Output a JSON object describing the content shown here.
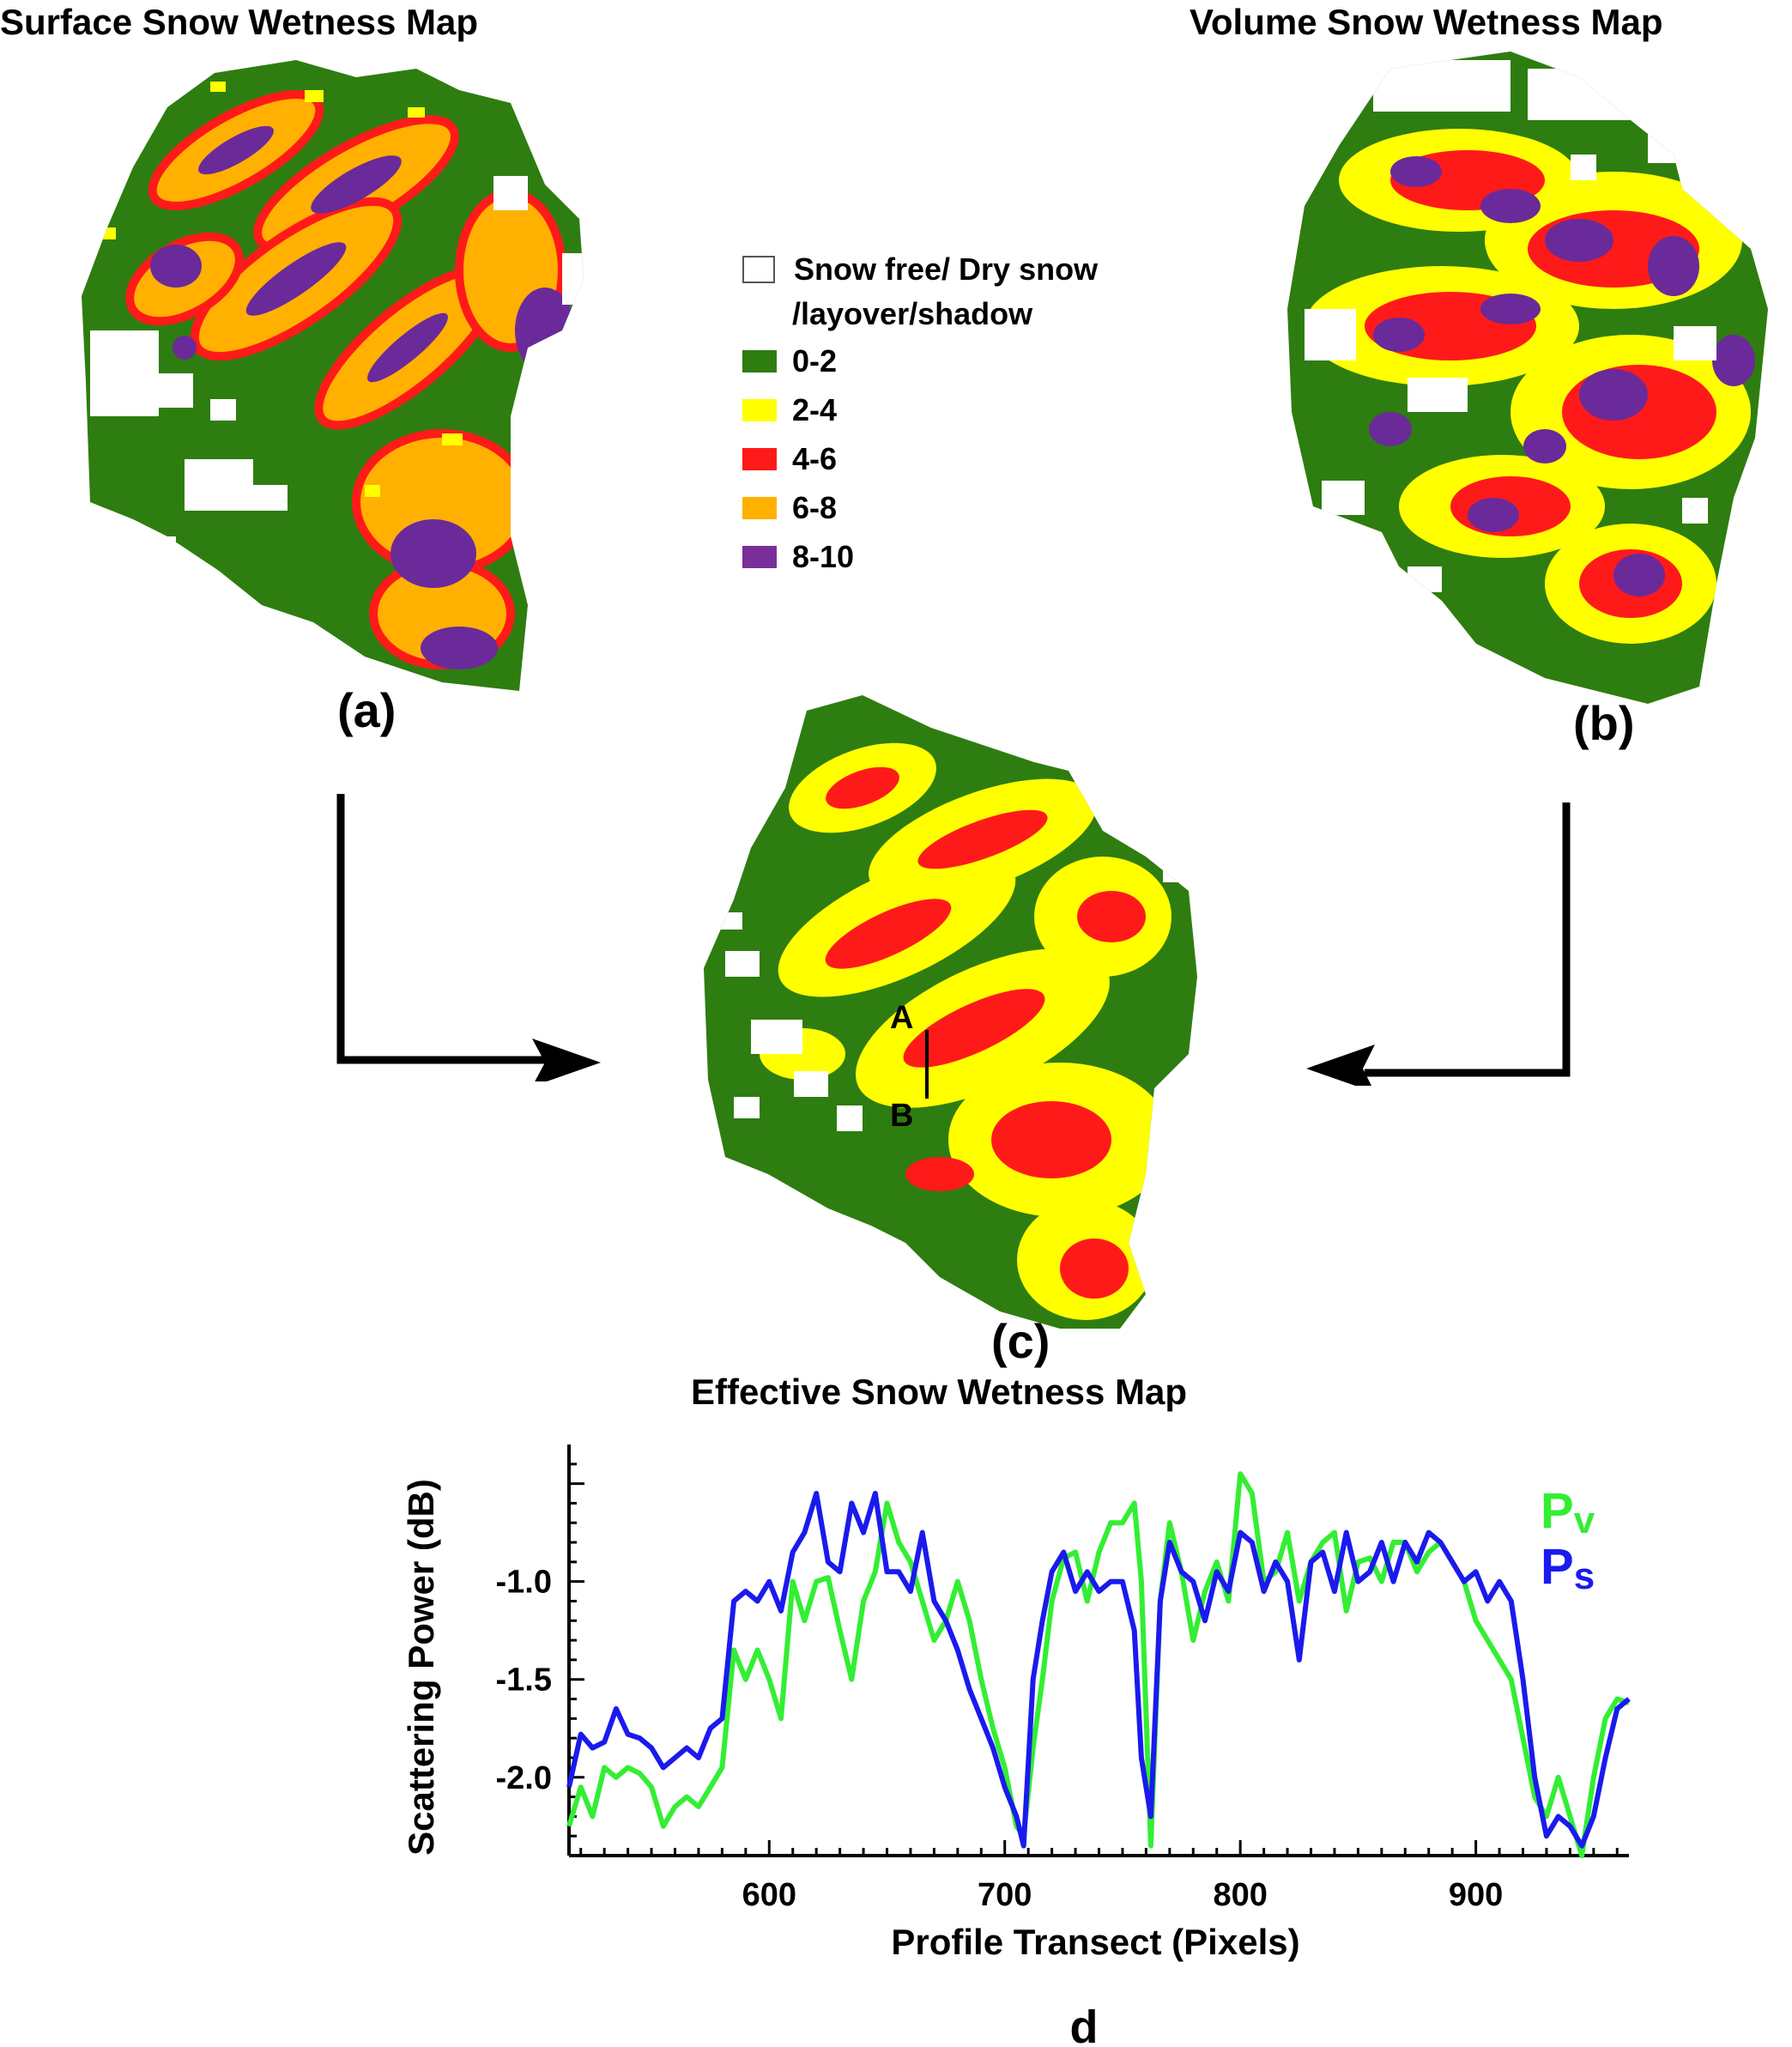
{
  "titles": {
    "surface": "Surface Snow Wetness Map",
    "volume": "Volume Snow Wetness Map",
    "effective": "Effective Snow Wetness Map"
  },
  "panel_labels": {
    "a": "(a)",
    "b": "(b)",
    "c": "(c)",
    "d": "d"
  },
  "legend": {
    "items": [
      {
        "label": "Snow free/ Dry  snow",
        "label2": "/layover/shadow",
        "color": "#ffffff"
      },
      {
        "label": "0-2",
        "color": "#2e7d10"
      },
      {
        "label": "2-4",
        "color": "#ffff00"
      },
      {
        "label": "4-6",
        "color": "#ff1a1a"
      },
      {
        "label": "6-8",
        "color": "#ffb000"
      },
      {
        "label": "8-10",
        "color": "#7a2e9a"
      }
    ]
  },
  "profile_markers": {
    "start": "A",
    "end": "B"
  },
  "colors": {
    "green": "#2e7d10",
    "yellow": "#ffff00",
    "red": "#ff1a1a",
    "orange": "#ffb000",
    "purple": "#6a2a9a",
    "pv_line": "#33ee33",
    "ps_line": "#1a1aee"
  },
  "chart_data": {
    "type": "line",
    "title": "",
    "xlabel": "Profile Transect (Pixels)",
    "ylabel": "Scattering Power (dB)",
    "xlim": [
      515,
      965
    ],
    "ylim": [
      -2.4,
      -0.3
    ],
    "xticks": [
      600,
      700,
      800,
      900
    ],
    "yticks": [
      -1.0,
      -1.5,
      -2.0
    ],
    "ytick_labels": [
      "-1.0",
      "-1.5",
      "-2.0"
    ],
    "xtick_labels": [
      "600",
      "700",
      "800",
      "900"
    ],
    "legend_position": "right",
    "series": [
      {
        "name": "Pv",
        "label_main": "P",
        "label_sub": "v",
        "color": "#33ee33",
        "x": [
          515,
          520,
          525,
          530,
          535,
          540,
          545,
          550,
          555,
          560,
          565,
          570,
          575,
          580,
          585,
          590,
          595,
          600,
          605,
          610,
          615,
          620,
          625,
          630,
          635,
          640,
          645,
          650,
          655,
          660,
          665,
          670,
          675,
          680,
          685,
          690,
          695,
          700,
          705,
          708,
          712,
          716,
          720,
          725,
          730,
          735,
          740,
          745,
          750,
          755,
          758,
          762,
          766,
          770,
          775,
          780,
          785,
          790,
          795,
          800,
          805,
          810,
          815,
          820,
          825,
          830,
          835,
          840,
          845,
          850,
          855,
          860,
          865,
          870,
          875,
          880,
          885,
          890,
          895,
          900,
          905,
          910,
          915,
          920,
          925,
          930,
          935,
          940,
          945,
          950,
          955,
          960,
          965
        ],
        "y": [
          -2.25,
          -2.05,
          -2.2,
          -1.95,
          -2.0,
          -1.95,
          -1.98,
          -2.05,
          -2.25,
          -2.15,
          -2.1,
          -2.15,
          -2.05,
          -1.95,
          -1.35,
          -1.5,
          -1.35,
          -1.5,
          -1.7,
          -1.0,
          -1.2,
          -1.0,
          -0.98,
          -1.25,
          -1.5,
          -1.1,
          -0.95,
          -0.6,
          -0.8,
          -0.9,
          -1.1,
          -1.3,
          -1.2,
          -1.0,
          -1.2,
          -1.5,
          -1.75,
          -1.95,
          -2.25,
          -2.3,
          -1.85,
          -1.5,
          -1.1,
          -0.88,
          -0.85,
          -1.1,
          -0.85,
          -0.7,
          -0.7,
          -0.6,
          -1.0,
          -2.35,
          -1.1,
          -0.7,
          -0.95,
          -1.3,
          -1.05,
          -0.9,
          -1.1,
          -0.45,
          -0.55,
          -1.0,
          -0.95,
          -0.75,
          -1.1,
          -0.9,
          -0.8,
          -0.75,
          -1.15,
          -0.9,
          -0.88,
          -1.0,
          -0.8,
          -0.8,
          -0.95,
          -0.85,
          -0.8,
          -0.9,
          -1.0,
          -1.2,
          -1.3,
          -1.4,
          -1.5,
          -1.8,
          -2.1,
          -2.2,
          -2.0,
          -2.2,
          -2.4,
          -2.0,
          -1.7,
          -1.6,
          -1.62
        ]
      },
      {
        "name": "Ps",
        "label_main": "P",
        "label_sub": "s",
        "color": "#1a1aee",
        "x": [
          515,
          520,
          525,
          530,
          535,
          540,
          545,
          550,
          555,
          560,
          565,
          570,
          575,
          580,
          585,
          590,
          595,
          600,
          605,
          610,
          615,
          620,
          625,
          630,
          635,
          640,
          645,
          650,
          655,
          660,
          665,
          670,
          675,
          680,
          685,
          690,
          695,
          700,
          705,
          708,
          712,
          716,
          720,
          725,
          730,
          735,
          740,
          745,
          750,
          755,
          758,
          762,
          766,
          770,
          775,
          780,
          785,
          790,
          795,
          800,
          805,
          810,
          815,
          820,
          825,
          830,
          835,
          840,
          845,
          850,
          855,
          860,
          865,
          870,
          875,
          880,
          885,
          890,
          895,
          900,
          905,
          910,
          915,
          920,
          925,
          930,
          935,
          940,
          945,
          950,
          955,
          960,
          965
        ],
        "y": [
          -2.05,
          -1.78,
          -1.85,
          -1.82,
          -1.65,
          -1.78,
          -1.8,
          -1.85,
          -1.95,
          -1.9,
          -1.85,
          -1.9,
          -1.75,
          -1.7,
          -1.1,
          -1.05,
          -1.1,
          -1.0,
          -1.15,
          -0.85,
          -0.75,
          -0.55,
          -0.9,
          -0.95,
          -0.6,
          -0.75,
          -0.55,
          -0.95,
          -0.95,
          -1.05,
          -0.75,
          -1.1,
          -1.2,
          -1.35,
          -1.55,
          -1.7,
          -1.85,
          -2.05,
          -2.2,
          -2.35,
          -1.5,
          -1.2,
          -0.95,
          -0.85,
          -1.05,
          -0.95,
          -1.05,
          -1.0,
          -1.0,
          -1.25,
          -1.9,
          -2.2,
          -1.1,
          -0.8,
          -0.95,
          -1.0,
          -1.2,
          -0.95,
          -1.05,
          -0.75,
          -0.8,
          -1.05,
          -0.9,
          -1.0,
          -1.4,
          -0.9,
          -0.85,
          -1.05,
          -0.75,
          -1.0,
          -0.95,
          -0.8,
          -1.0,
          -0.8,
          -0.9,
          -0.75,
          -0.8,
          -0.9,
          -1.0,
          -0.95,
          -1.1,
          -1.0,
          -1.1,
          -1.5,
          -2.0,
          -2.3,
          -2.2,
          -2.25,
          -2.35,
          -2.2,
          -1.9,
          -1.65,
          -1.6
        ]
      }
    ]
  }
}
